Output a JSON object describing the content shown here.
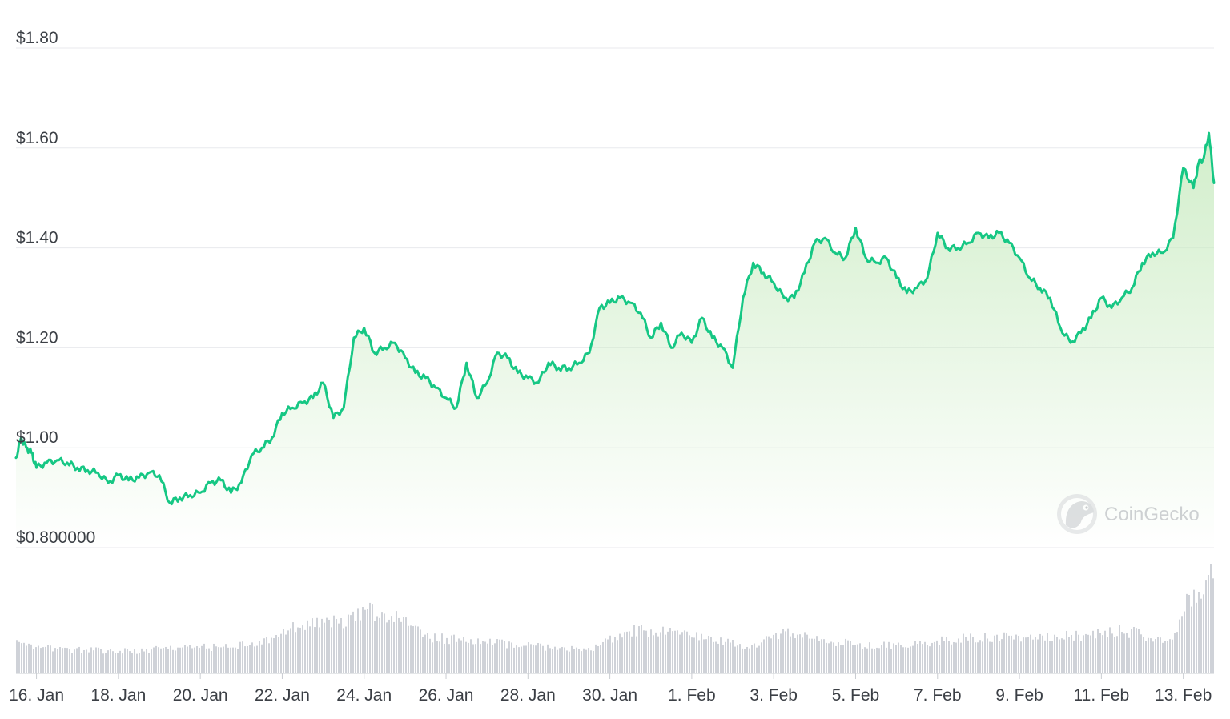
{
  "chart_data": {
    "type": "line",
    "title": "",
    "xlabel": "",
    "ylabel": "",
    "y_tick_labels": [
      "$0.800000",
      "$1.00",
      "$1.20",
      "$1.40",
      "$1.60",
      "$1.80"
    ],
    "y_tick_values": [
      0.8,
      1.0,
      1.2,
      1.4,
      1.6,
      1.8
    ],
    "ylim": [
      0.8,
      1.8
    ],
    "x_tick_labels": [
      "16. Jan",
      "18. Jan",
      "20. Jan",
      "22. Jan",
      "24. Jan",
      "26. Jan",
      "28. Jan",
      "30. Jan",
      "1. Feb",
      "3. Feb",
      "5. Feb",
      "7. Feb",
      "9. Feb",
      "11. Feb",
      "13. Feb"
    ],
    "x_tick_values": [
      "2024-01-16",
      "2024-01-18",
      "2024-01-20",
      "2024-01-22",
      "2024-01-24",
      "2024-01-26",
      "2024-01-28",
      "2024-01-30",
      "2024-02-01",
      "2024-02-03",
      "2024-02-05",
      "2024-02-07",
      "2024-02-09",
      "2024-02-11",
      "2024-02-13"
    ],
    "xlim": [
      "2024-01-15 12:00",
      "2024-02-13 18:00"
    ],
    "grid": true,
    "legend": "none",
    "line_color": "#16c784",
    "fill_color": "#c9ebc1",
    "volume_color": "#cfd2d8",
    "series": [
      {
        "values": [
          [
            "2024-01-15 12:00",
            0.98
          ],
          [
            "2024-01-15 15:00",
            1.02
          ],
          [
            "2024-01-15 18:00",
            1.0
          ],
          [
            "2024-01-15 21:00",
            0.99
          ],
          [
            "2024-01-16 00:00",
            0.96
          ],
          [
            "2024-01-16 06:00",
            0.97
          ],
          [
            "2024-01-16 12:00",
            0.975
          ],
          [
            "2024-01-16 18:00",
            0.97
          ],
          [
            "2024-01-17 00:00",
            0.96
          ],
          [
            "2024-01-17 06:00",
            0.955
          ],
          [
            "2024-01-17 12:00",
            0.95
          ],
          [
            "2024-01-17 18:00",
            0.93
          ],
          [
            "2024-01-18 00:00",
            0.945
          ],
          [
            "2024-01-18 06:00",
            0.935
          ],
          [
            "2024-01-18 12:00",
            0.94
          ],
          [
            "2024-01-18 18:00",
            0.95
          ],
          [
            "2024-01-19 00:00",
            0.945
          ],
          [
            "2024-01-19 06:00",
            0.89
          ],
          [
            "2024-01-19 12:00",
            0.9
          ],
          [
            "2024-01-19 18:00",
            0.905
          ],
          [
            "2024-01-20 00:00",
            0.91
          ],
          [
            "2024-01-20 06:00",
            0.93
          ],
          [
            "2024-01-20 12:00",
            0.935
          ],
          [
            "2024-01-20 18:00",
            0.91
          ],
          [
            "2024-01-21 00:00",
            0.93
          ],
          [
            "2024-01-21 06:00",
            0.985
          ],
          [
            "2024-01-21 12:00",
            1.0
          ],
          [
            "2024-01-21 18:00",
            1.02
          ],
          [
            "2024-01-22 00:00",
            1.07
          ],
          [
            "2024-01-22 06:00",
            1.08
          ],
          [
            "2024-01-22 12:00",
            1.09
          ],
          [
            "2024-01-22 18:00",
            1.1
          ],
          [
            "2024-01-23 00:00",
            1.13
          ],
          [
            "2024-01-23 06:00",
            1.06
          ],
          [
            "2024-01-23 12:00",
            1.08
          ],
          [
            "2024-01-23 18:00",
            1.22
          ],
          [
            "2024-01-24 00:00",
            1.24
          ],
          [
            "2024-01-24 06:00",
            1.19
          ],
          [
            "2024-01-24 12:00",
            1.2
          ],
          [
            "2024-01-24 18:00",
            1.21
          ],
          [
            "2024-01-25 00:00",
            1.18
          ],
          [
            "2024-01-25 06:00",
            1.15
          ],
          [
            "2024-01-25 12:00",
            1.14
          ],
          [
            "2024-01-25 18:00",
            1.12
          ],
          [
            "2024-01-26 00:00",
            1.1
          ],
          [
            "2024-01-26 06:00",
            1.08
          ],
          [
            "2024-01-26 12:00",
            1.17
          ],
          [
            "2024-01-26 18:00",
            1.1
          ],
          [
            "2024-01-27 00:00",
            1.13
          ],
          [
            "2024-01-27 06:00",
            1.19
          ],
          [
            "2024-01-27 12:00",
            1.18
          ],
          [
            "2024-01-27 18:00",
            1.15
          ],
          [
            "2024-01-28 00:00",
            1.14
          ],
          [
            "2024-01-28 06:00",
            1.13
          ],
          [
            "2024-01-28 12:00",
            1.17
          ],
          [
            "2024-01-28 18:00",
            1.16
          ],
          [
            "2024-01-29 00:00",
            1.16
          ],
          [
            "2024-01-29 06:00",
            1.17
          ],
          [
            "2024-01-29 12:00",
            1.19
          ],
          [
            "2024-01-29 18:00",
            1.28
          ],
          [
            "2024-01-30 00:00",
            1.29
          ],
          [
            "2024-01-30 06:00",
            1.3
          ],
          [
            "2024-01-30 12:00",
            1.29
          ],
          [
            "2024-01-30 18:00",
            1.27
          ],
          [
            "2024-01-31 00:00",
            1.22
          ],
          [
            "2024-01-31 06:00",
            1.25
          ],
          [
            "2024-01-31 12:00",
            1.2
          ],
          [
            "2024-01-31 18:00",
            1.23
          ],
          [
            "2024-02-01 00:00",
            1.21
          ],
          [
            "2024-02-01 06:00",
            1.26
          ],
          [
            "2024-02-01 12:00",
            1.22
          ],
          [
            "2024-02-01 18:00",
            1.2
          ],
          [
            "2024-02-02 00:00",
            1.16
          ],
          [
            "2024-02-02 06:00",
            1.3
          ],
          [
            "2024-02-02 12:00",
            1.37
          ],
          [
            "2024-02-02 18:00",
            1.35
          ],
          [
            "2024-02-03 00:00",
            1.33
          ],
          [
            "2024-02-03 06:00",
            1.3
          ],
          [
            "2024-02-03 12:00",
            1.3
          ],
          [
            "2024-02-03 18:00",
            1.35
          ],
          [
            "2024-02-04 00:00",
            1.41
          ],
          [
            "2024-02-04 06:00",
            1.42
          ],
          [
            "2024-02-04 12:00",
            1.39
          ],
          [
            "2024-02-04 18:00",
            1.38
          ],
          [
            "2024-02-05 00:00",
            1.44
          ],
          [
            "2024-02-05 06:00",
            1.38
          ],
          [
            "2024-02-05 12:00",
            1.37
          ],
          [
            "2024-02-05 18:00",
            1.38
          ],
          [
            "2024-02-06 00:00",
            1.34
          ],
          [
            "2024-02-06 06:00",
            1.31
          ],
          [
            "2024-02-06 12:00",
            1.32
          ],
          [
            "2024-02-06 18:00",
            1.34
          ],
          [
            "2024-02-07 00:00",
            1.43
          ],
          [
            "2024-02-07 06:00",
            1.4
          ],
          [
            "2024-02-07 12:00",
            1.4
          ],
          [
            "2024-02-07 18:00",
            1.41
          ],
          [
            "2024-02-08 00:00",
            1.43
          ],
          [
            "2024-02-08 06:00",
            1.42
          ],
          [
            "2024-02-08 12:00",
            1.43
          ],
          [
            "2024-02-08 18:00",
            1.41
          ],
          [
            "2024-02-09 00:00",
            1.38
          ],
          [
            "2024-02-09 06:00",
            1.34
          ],
          [
            "2024-02-09 12:00",
            1.32
          ],
          [
            "2024-02-09 18:00",
            1.3
          ],
          [
            "2024-02-10 00:00",
            1.24
          ],
          [
            "2024-02-10 06:00",
            1.21
          ],
          [
            "2024-02-10 12:00",
            1.23
          ],
          [
            "2024-02-10 18:00",
            1.26
          ],
          [
            "2024-02-11 00:00",
            1.3
          ],
          [
            "2024-02-11 06:00",
            1.28
          ],
          [
            "2024-02-11 12:00",
            1.3
          ],
          [
            "2024-02-11 18:00",
            1.32
          ],
          [
            "2024-02-12 00:00",
            1.37
          ],
          [
            "2024-02-12 06:00",
            1.39
          ],
          [
            "2024-02-12 12:00",
            1.39
          ],
          [
            "2024-02-12 18:00",
            1.42
          ],
          [
            "2024-02-13 00:00",
            1.56
          ],
          [
            "2024-02-13 06:00",
            1.52
          ],
          [
            "2024-02-13 09:00",
            1.57
          ],
          [
            "2024-02-13 12:00",
            1.58
          ],
          [
            "2024-02-13 15:00",
            1.63
          ],
          [
            "2024-02-13 18:00",
            1.53
          ]
        ]
      }
    ],
    "volume_relative": [
      [
        "2024-01-15 12:00",
        0.18
      ],
      [
        "2024-01-16 12:00",
        0.14
      ],
      [
        "2024-01-17 12:00",
        0.13
      ],
      [
        "2024-01-18 12:00",
        0.13
      ],
      [
        "2024-01-19 12:00",
        0.15
      ],
      [
        "2024-01-20 12:00",
        0.15
      ],
      [
        "2024-01-21 12:00",
        0.18
      ],
      [
        "2024-01-22 00:00",
        0.25
      ],
      [
        "2024-01-22 12:00",
        0.29
      ],
      [
        "2024-01-23 12:00",
        0.31
      ],
      [
        "2024-01-24 00:00",
        0.37
      ],
      [
        "2024-01-24 12:00",
        0.35
      ],
      [
        "2024-01-25 00:00",
        0.3
      ],
      [
        "2024-01-25 12:00",
        0.21
      ],
      [
        "2024-01-26 12:00",
        0.19
      ],
      [
        "2024-01-27 12:00",
        0.17
      ],
      [
        "2024-01-28 12:00",
        0.15
      ],
      [
        "2024-01-29 12:00",
        0.13
      ],
      [
        "2024-01-30 00:00",
        0.2
      ],
      [
        "2024-01-30 12:00",
        0.25
      ],
      [
        "2024-01-31 12:00",
        0.24
      ],
      [
        "2024-02-01 12:00",
        0.19
      ],
      [
        "2024-02-02 12:00",
        0.15
      ],
      [
        "2024-02-03 00:00",
        0.22
      ],
      [
        "2024-02-03 12:00",
        0.24
      ],
      [
        "2024-02-04 12:00",
        0.18
      ],
      [
        "2024-02-05 12:00",
        0.16
      ],
      [
        "2024-02-06 12:00",
        0.17
      ],
      [
        "2024-02-07 12:00",
        0.2
      ],
      [
        "2024-02-08 12:00",
        0.21
      ],
      [
        "2024-02-09 12:00",
        0.21
      ],
      [
        "2024-02-10 12:00",
        0.22
      ],
      [
        "2024-02-11 12:00",
        0.25
      ],
      [
        "2024-02-12 12:00",
        0.2
      ],
      [
        "2024-02-12 18:00",
        0.2
      ],
      [
        "2024-02-13 00:00",
        0.42
      ],
      [
        "2024-02-13 12:00",
        0.52
      ],
      [
        "2024-02-13 18:00",
        0.6
      ]
    ]
  },
  "watermark": {
    "text": "CoinGecko",
    "icon": "gecko-icon"
  }
}
